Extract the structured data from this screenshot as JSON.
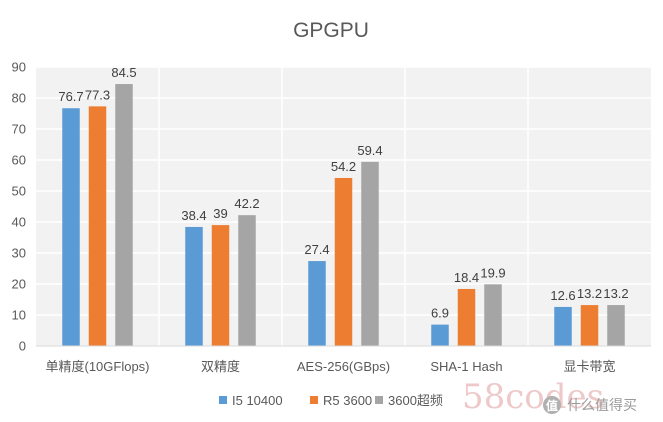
{
  "chart_data": {
    "type": "bar",
    "title": "GPGPU",
    "categories": [
      "单精度(10GFlops)",
      "双精度",
      "AES-256(GBps)",
      "SHA-1 Hash",
      "显卡带宽"
    ],
    "series": [
      {
        "name": "I5 10400",
        "values": [
          76.7,
          38.4,
          27.4,
          6.9,
          12.6
        ],
        "color": "#5b9bd5"
      },
      {
        "name": "R5 3600",
        "values": [
          77.3,
          39,
          54.2,
          18.4,
          13.2
        ],
        "color": "#ed7d31"
      },
      {
        "name": "3600超频",
        "values": [
          84.5,
          42.2,
          59.4,
          19.9,
          13.2
        ],
        "color": "#a5a5a5"
      }
    ],
    "data_labels": [
      [
        "76.7",
        "38.4",
        "27.4",
        "6.9",
        "12.6"
      ],
      [
        "77.3",
        "39",
        "54.2",
        "18.4",
        "13.2"
      ],
      [
        "84.5",
        "42.2",
        "59.4",
        "19.9",
        "13.2"
      ]
    ],
    "ylim": [
      0,
      90
    ],
    "yticks": [
      "0",
      "10",
      "20",
      "30",
      "40",
      "50",
      "60",
      "70",
      "80",
      "90"
    ],
    "xlabel": "",
    "ylabel": "",
    "legend_position": "bottom",
    "grid": true
  },
  "watermark": {
    "logo_text": "58codes",
    "site_text": "什么值得买"
  }
}
